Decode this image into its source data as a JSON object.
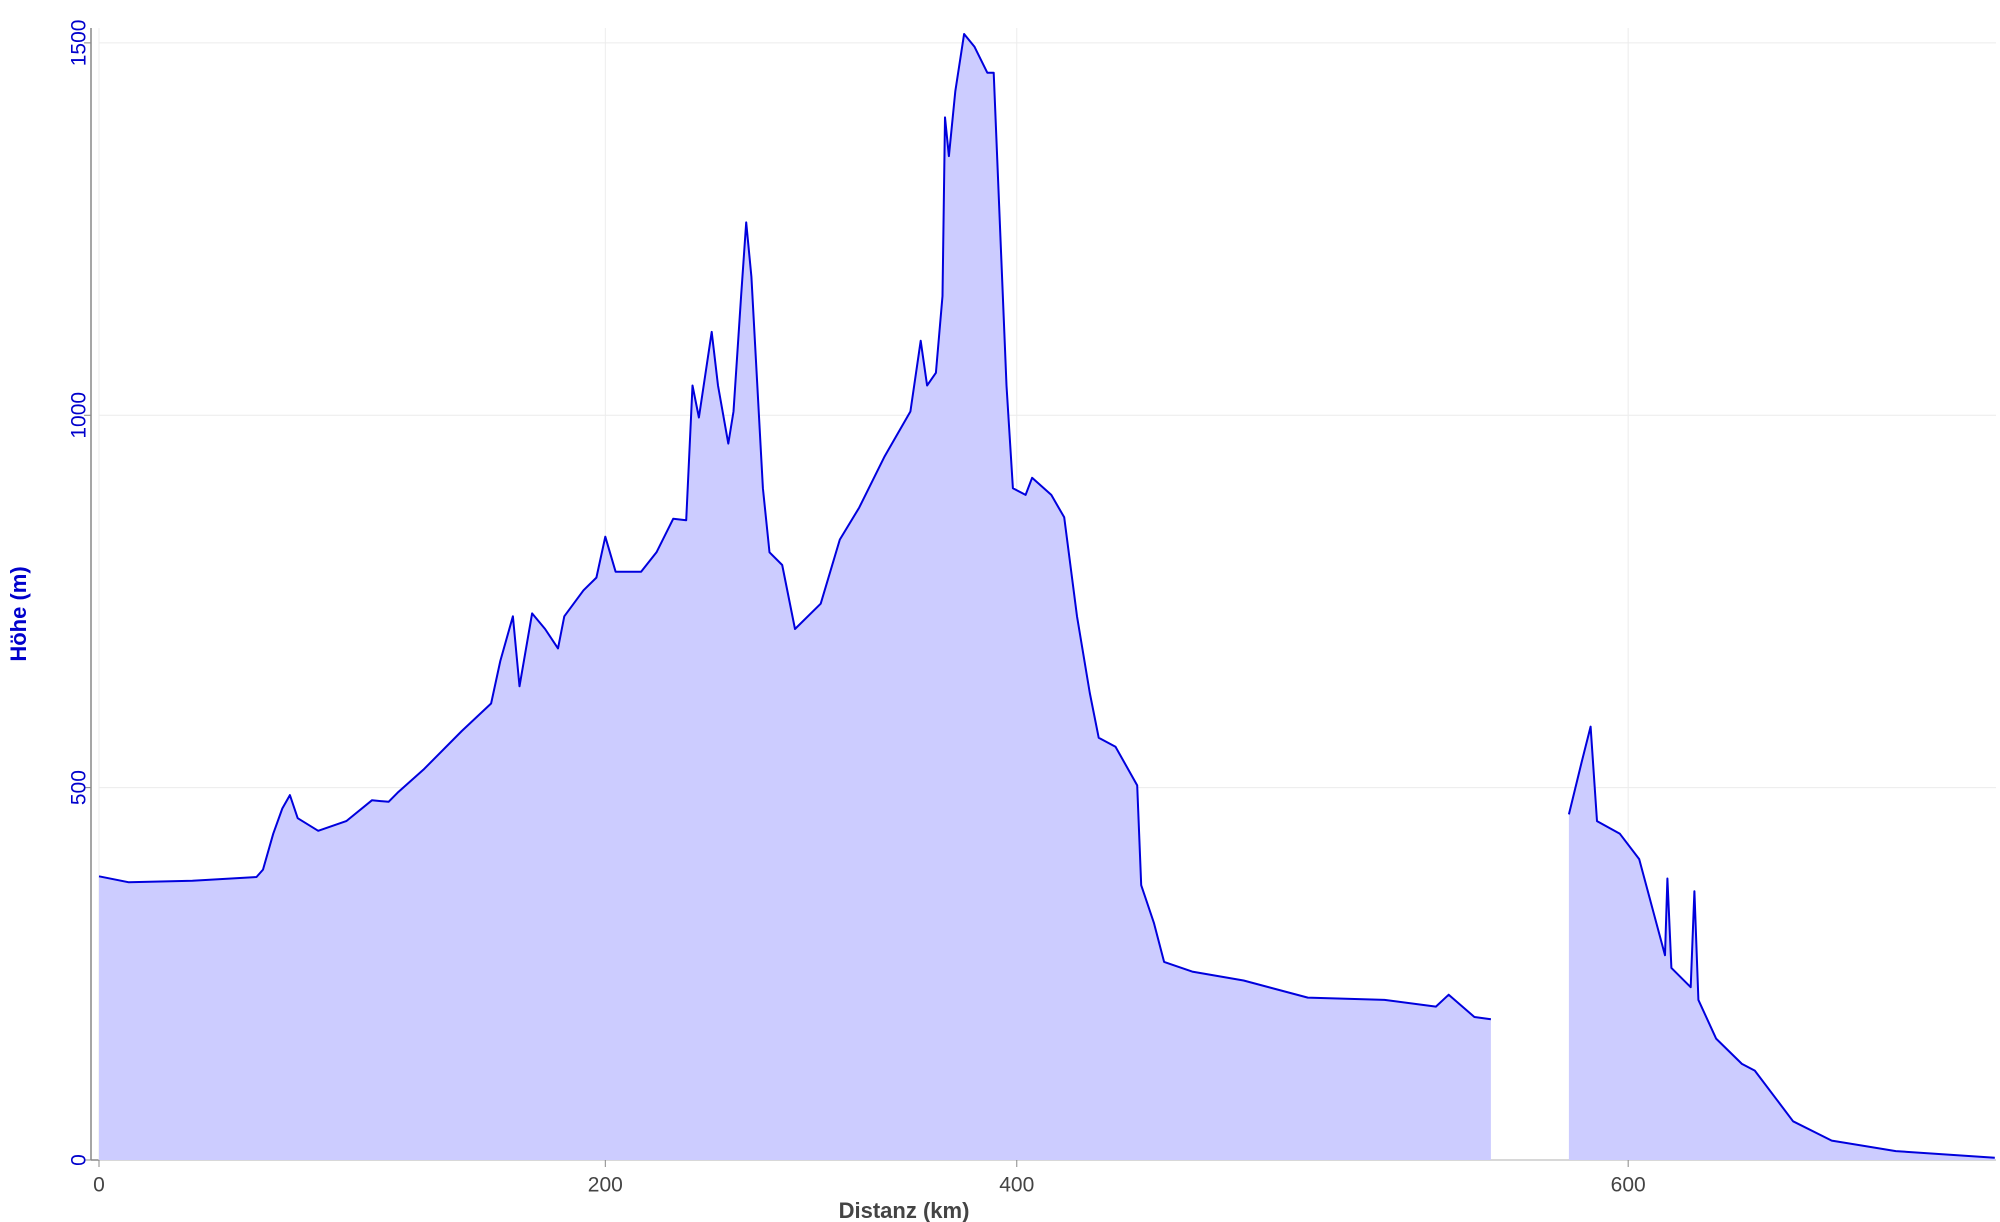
{
  "chart_data": {
    "type": "area",
    "x_label": "Distanz (km)",
    "y_label": "Höhe (m)",
    "xlim": [
      0,
      720
    ],
    "xticks": [
      0,
      200,
      400,
      600
    ],
    "ylim": [
      0,
      1520
    ],
    "yticks": [
      0,
      500,
      1000,
      1500
    ],
    "grid": true,
    "x": [
      0,
      11.6,
      36.9,
      62.2,
      64.8,
      68.8,
      72.4,
      75.4,
      78.5,
      86.6,
      97.7,
      107.8,
      114.4,
      117.9,
      128.1,
      143.3,
      154.9,
      158.5,
      163.5,
      166.1,
      171.1,
      176.2,
      181.3,
      183.8,
      191.4,
      196.5,
      200,
      205.0,
      217.4,
      224.9,
      233.0,
      239.3,
      242.4,
      245.5,
      251.7,
      254.8,
      259.8,
      262.3,
      266.0,
      268.5,
      271.0,
      276.6,
      279.8,
      286.0,
      292.2,
      304.7,
      314.0,
      323.4,
      335.8,
      348.3,
      353.3,
      356.4,
      360.7,
      363.9,
      365.1,
      367.0,
      370.1,
      374.4,
      379.4,
      385.7,
      388.8,
      395.0,
      398.1,
      402.9,
      405.0,
      411.3,
      415.5,
      419.7,
      423.9,
      426.8,
      432.3,
      439.4,
      440.7,
      444.9,
      448.2,
      457.4,
      474.2,
      495.2,
      520.3,
      537.1,
      541.3,
      549.7,
      555.1,
      567.0,
      580.6,
      584.7,
      587.7,
      589.8,
      597.3,
      603.6,
      612.0,
      612.8,
      614.1,
      620.4,
      621.6,
      622.9,
      628.7,
      637.1,
      641.3,
      653.8,
      666.4,
      687.3,
      719.6
    ],
    "series": [
      {
        "name": "Höhe",
        "color": "#0000dd",
        "fill": "#ccccff",
        "values": [
          381,
          373,
          375,
          380,
          390,
          438,
          472,
          490,
          459,
          442,
          455,
          483,
          481,
          493,
          524,
          576,
          613,
          670,
          730,
          636,
          734,
          713,
          687,
          730,
          765,
          782,
          837,
          790,
          790,
          816,
          861,
          859,
          1040,
          997,
          1112,
          1040,
          962,
          1005,
          1160,
          1259,
          1186,
          902,
          816,
          799,
          713,
          747,
          833,
          876,
          945,
          1005,
          1100,
          1040,
          1057,
          1160,
          1400,
          1348,
          1435,
          1512,
          1495,
          1460,
          1460,
          1040,
          902,
          893,
          916,
          893,
          863,
          730,
          627,
          567,
          555,
          503,
          369,
          318,
          266,
          253,
          241,
          218,
          215,
          206,
          222,
          192,
          189,
          null,
          464,
          533,
          582,
          455,
          438,
          404,
          275,
          378,
          258,
          232,
          361,
          215,
          163,
          129,
          120,
          52,
          26,
          12,
          3
        ]
      }
    ]
  }
}
